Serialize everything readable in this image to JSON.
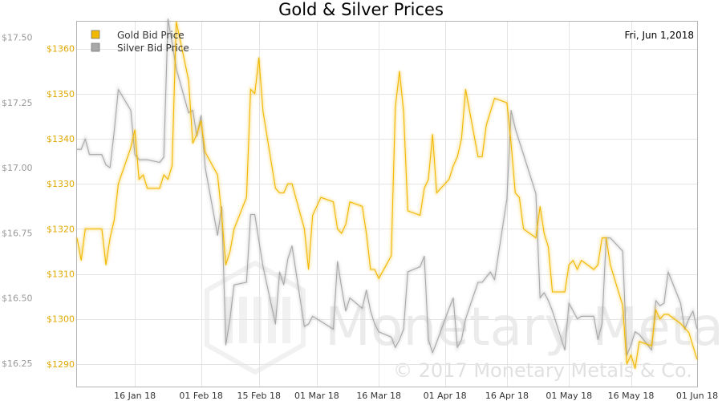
{
  "chart_data": {
    "type": "line",
    "title": "Gold & Silver Prices",
    "date_label": "Fri, Jun 1,2018",
    "watermark": {
      "name": "Monetary Metals",
      "copyright": "© 2017 Monetary Metals & Co."
    },
    "x_ticks": [
      "16 Jan 18",
      "01 Feb 18",
      "15 Feb 18",
      "01 Mar 18",
      "16 Mar 18",
      "01 Apr 18",
      "16 Apr 18",
      "01 May 18",
      "16 May 18",
      "01 Jun 18"
    ],
    "x_range": [
      "2018-01-02",
      "2018-06-01"
    ],
    "y_left": {
      "ticks": [
        "$1290",
        "$1300",
        "$1310",
        "$1320",
        "$1330",
        "$1340",
        "$1350",
        "$1360"
      ],
      "range": [
        1285,
        1366
      ]
    },
    "y_right": {
      "ticks": [
        "$16.25",
        "$16.50",
        "$16.75",
        "$17.00",
        "$17.25",
        "$17.50"
      ],
      "range": [
        16.16,
        17.56
      ]
    },
    "grid": true,
    "legend_position": "top-left",
    "colors": {
      "gold": "#f2b800",
      "silver": "#a8a8a8",
      "grid": "#e4e4e4",
      "left_axis_text": "#e0a800",
      "right_axis_text": "#999999"
    },
    "series": [
      {
        "name": "Gold Bid Price",
        "axis": "left",
        "x": [
          "2018-01-02",
          "2018-01-03",
          "2018-01-04",
          "2018-01-05",
          "2018-01-08",
          "2018-01-09",
          "2018-01-10",
          "2018-01-11",
          "2018-01-12",
          "2018-01-15",
          "2018-01-16",
          "2018-01-17",
          "2018-01-18",
          "2018-01-19",
          "2018-01-22",
          "2018-01-23",
          "2018-01-24",
          "2018-01-25",
          "2018-01-26",
          "2018-01-29",
          "2018-01-30",
          "2018-01-31",
          "2018-02-01",
          "2018-02-02",
          "2018-02-05",
          "2018-02-06",
          "2018-02-07",
          "2018-02-08",
          "2018-02-09",
          "2018-02-12",
          "2018-02-13",
          "2018-02-14",
          "2018-02-15",
          "2018-02-16",
          "2018-02-19",
          "2018-02-20",
          "2018-02-21",
          "2018-02-22",
          "2018-02-23",
          "2018-02-26",
          "2018-02-27",
          "2018-02-28",
          "2018-03-01",
          "2018-03-02",
          "2018-03-05",
          "2018-03-06",
          "2018-03-07",
          "2018-03-08",
          "2018-03-09",
          "2018-03-12",
          "2018-03-13",
          "2018-03-14",
          "2018-03-15",
          "2018-03-16",
          "2018-03-19",
          "2018-03-20",
          "2018-03-21",
          "2018-03-22",
          "2018-03-23",
          "2018-03-26",
          "2018-03-27",
          "2018-03-28",
          "2018-03-29",
          "2018-03-30",
          "2018-04-02",
          "2018-04-03",
          "2018-04-04",
          "2018-04-05",
          "2018-04-06",
          "2018-04-09",
          "2018-04-10",
          "2018-04-11",
          "2018-04-12",
          "2018-04-13",
          "2018-04-16",
          "2018-04-17",
          "2018-04-18",
          "2018-04-19",
          "2018-04-20",
          "2018-04-23",
          "2018-04-24",
          "2018-04-25",
          "2018-04-26",
          "2018-04-27",
          "2018-04-30",
          "2018-05-01",
          "2018-05-02",
          "2018-05-03",
          "2018-05-04",
          "2018-05-07",
          "2018-05-08",
          "2018-05-09",
          "2018-05-10",
          "2018-05-11",
          "2018-05-14",
          "2018-05-15",
          "2018-05-16",
          "2018-05-17",
          "2018-05-18",
          "2018-05-21",
          "2018-05-22",
          "2018-05-23",
          "2018-05-24",
          "2018-05-25",
          "2018-05-28",
          "2018-05-29",
          "2018-05-30",
          "2018-05-31",
          "2018-06-01"
        ],
        "values": [
          1318,
          1313,
          1320,
          1320,
          1320,
          1312,
          1318,
          1322,
          1330,
          1338,
          1342,
          1331,
          1332,
          1329,
          1329,
          1332,
          1331,
          1334,
          1366,
          1353,
          1339,
          1341,
          1344,
          1337,
          1332,
          1323,
          1312,
          1315,
          1320,
          1327,
          1351,
          1350,
          1358,
          1346,
          1329,
          1328,
          1328,
          1330,
          1330,
          1320,
          1311,
          1323,
          1325,
          1327,
          1326,
          1320,
          1319,
          1321,
          1326,
          1325,
          1319,
          1311,
          1311,
          1309,
          1314,
          1347,
          1355,
          1346,
          1324,
          1323,
          1329,
          1331,
          1341,
          1328,
          1331,
          1334,
          1336,
          1340,
          1351,
          1336,
          1336,
          1343,
          1346,
          1349,
          1348,
          1339,
          1328,
          1327,
          1320,
          1318,
          1325,
          1319,
          1316,
          1306,
          1306,
          1312,
          1313,
          1311,
          1313,
          1311,
          1312,
          1318,
          1318,
          1312,
          1303,
          1290,
          1292,
          1289,
          1295,
          1294,
          1302,
          1300,
          1301,
          1301,
          1299,
          1298,
          1297,
          1294,
          1291
        ]
      },
      {
        "name": "Silver Bid Price",
        "axis": "right",
        "x": [
          "2018-01-02",
          "2018-01-03",
          "2018-01-04",
          "2018-01-05",
          "2018-01-08",
          "2018-01-09",
          "2018-01-10",
          "2018-01-11",
          "2018-01-12",
          "2018-01-15",
          "2018-01-16",
          "2018-01-17",
          "2018-01-18",
          "2018-01-19",
          "2018-01-22",
          "2018-01-23",
          "2018-01-24",
          "2018-01-25",
          "2018-01-26",
          "2018-01-29",
          "2018-01-30",
          "2018-01-31",
          "2018-02-01",
          "2018-02-02",
          "2018-02-05",
          "2018-02-06",
          "2018-02-07",
          "2018-02-08",
          "2018-02-09",
          "2018-02-12",
          "2018-02-13",
          "2018-02-14",
          "2018-02-15",
          "2018-02-16",
          "2018-02-19",
          "2018-02-20",
          "2018-02-21",
          "2018-02-22",
          "2018-02-23",
          "2018-02-26",
          "2018-02-27",
          "2018-02-28",
          "2018-03-01",
          "2018-03-02",
          "2018-03-05",
          "2018-03-06",
          "2018-03-07",
          "2018-03-08",
          "2018-03-09",
          "2018-03-12",
          "2018-03-13",
          "2018-03-14",
          "2018-03-15",
          "2018-03-16",
          "2018-03-19",
          "2018-03-20",
          "2018-03-21",
          "2018-03-22",
          "2018-03-23",
          "2018-03-26",
          "2018-03-27",
          "2018-03-28",
          "2018-03-29",
          "2018-03-30",
          "2018-04-02",
          "2018-04-03",
          "2018-04-04",
          "2018-04-05",
          "2018-04-06",
          "2018-04-09",
          "2018-04-10",
          "2018-04-11",
          "2018-04-12",
          "2018-04-13",
          "2018-04-16",
          "2018-04-17",
          "2018-04-18",
          "2018-04-19",
          "2018-04-20",
          "2018-04-23",
          "2018-04-24",
          "2018-04-25",
          "2018-04-26",
          "2018-04-27",
          "2018-04-30",
          "2018-05-01",
          "2018-05-02",
          "2018-05-03",
          "2018-05-04",
          "2018-05-07",
          "2018-05-08",
          "2018-05-09",
          "2018-05-10",
          "2018-05-11",
          "2018-05-14",
          "2018-05-15",
          "2018-05-16",
          "2018-05-17",
          "2018-05-18",
          "2018-05-21",
          "2018-05-22",
          "2018-05-23",
          "2018-05-24",
          "2018-05-25",
          "2018-05-28",
          "2018-05-29",
          "2018-05-30",
          "2018-05-31",
          "2018-06-01"
        ],
        "values": [
          17.07,
          17.07,
          17.11,
          17.05,
          17.05,
          17.01,
          17.0,
          17.14,
          17.3,
          17.22,
          17.05,
          17.03,
          17.03,
          17.03,
          17.02,
          17.04,
          17.57,
          17.48,
          17.38,
          17.21,
          17.22,
          17.12,
          17.2,
          17.0,
          16.74,
          16.85,
          16.32,
          16.42,
          16.55,
          16.56,
          16.82,
          16.82,
          16.72,
          16.62,
          16.4,
          16.6,
          16.55,
          16.65,
          16.7,
          16.39,
          16.4,
          16.43,
          16.42,
          16.41,
          16.38,
          16.64,
          16.54,
          16.45,
          16.5,
          16.46,
          16.53,
          16.45,
          16.4,
          16.37,
          16.35,
          16.31,
          16.34,
          16.38,
          16.6,
          16.62,
          16.66,
          16.34,
          16.29,
          16.33,
          16.46,
          16.5,
          16.31,
          16.34,
          16.42,
          16.56,
          16.56,
          16.58,
          16.6,
          16.57,
          16.88,
          17.22,
          17.15,
          17.1,
          17.05,
          16.9,
          16.5,
          16.52,
          16.49,
          16.45,
          16.3,
          16.48,
          16.45,
          16.42,
          16.43,
          16.43,
          16.34,
          16.4,
          16.73,
          16.73,
          16.68,
          16.28,
          16.32,
          16.37,
          16.36,
          16.3,
          16.49,
          16.47,
          16.48,
          16.6,
          16.48,
          16.38,
          16.42,
          16.45,
          16.38
        ]
      }
    ]
  }
}
